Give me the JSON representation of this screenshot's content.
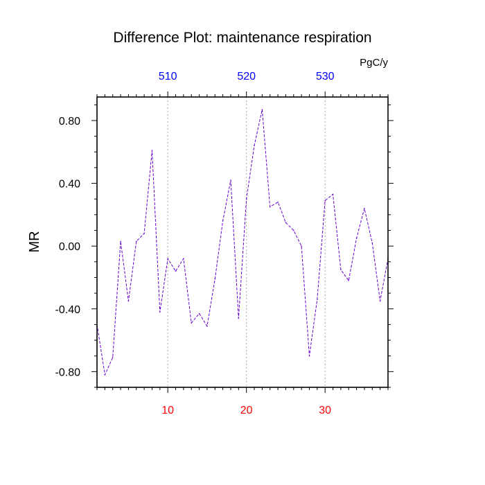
{
  "chart_data": {
    "type": "line",
    "title": "Difference Plot: maintenance respiration",
    "units": "PgC/y",
    "ylabel": "MR",
    "xlim": [
      1,
      38
    ],
    "ylim": [
      -0.9,
      0.95
    ],
    "x_ticks": [
      10,
      20,
      30
    ],
    "x_tick_labels": [
      "10",
      "20",
      "30"
    ],
    "top_x_ticks": [
      10,
      20,
      30
    ],
    "top_x_tick_labels": [
      "510",
      "520",
      "530"
    ],
    "y_ticks": [
      -0.8,
      -0.4,
      0.0,
      0.4,
      0.8
    ],
    "y_tick_labels": [
      "-0.80",
      "-0.40",
      "0.00",
      "0.40",
      "0.80"
    ],
    "grid": "vertical dotted lines at major x ticks",
    "series": [
      {
        "color": "#6600cc",
        "dash": "dashed",
        "x": [
          1,
          2,
          3,
          4,
          5,
          6,
          7,
          8,
          9,
          10,
          11,
          12,
          13,
          14,
          15,
          16,
          17,
          18,
          19,
          20,
          21,
          22,
          23,
          24,
          25,
          26,
          27,
          28,
          29,
          30,
          31,
          32,
          33,
          34,
          35,
          36,
          37,
          38
        ],
        "y": [
          -0.5,
          -0.82,
          -0.71,
          0.03,
          -0.35,
          0.03,
          0.08,
          0.61,
          -0.42,
          -0.08,
          -0.16,
          -0.08,
          -0.49,
          -0.43,
          -0.51,
          -0.21,
          0.16,
          0.42,
          -0.46,
          0.3,
          0.64,
          0.87,
          0.25,
          0.28,
          0.15,
          0.1,
          0.0,
          -0.7,
          -0.34,
          0.29,
          0.33,
          -0.15,
          -0.22,
          0.05,
          0.24,
          0.02,
          -0.35,
          -0.08
        ]
      }
    ]
  },
  "colors": {
    "bottom_tick_labels": "#ff0000",
    "top_tick_labels": "#0000ff",
    "axes": "#000000",
    "grid": "#aaaaaa"
  }
}
